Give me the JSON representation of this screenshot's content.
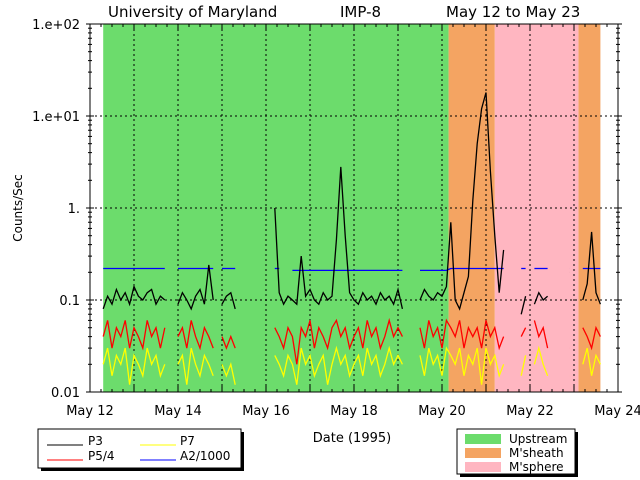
{
  "chart_data": {
    "type": "line",
    "title_parts": [
      "University of Maryland",
      "IMP-8",
      "May 12 to May 23"
    ],
    "xlabel": "Date (1995)",
    "ylabel": "Counts/Sec",
    "yscale": "log",
    "ylim": [
      0.01,
      100
    ],
    "xlim": [
      12,
      24
    ],
    "x_ticks": [
      12,
      14,
      16,
      18,
      20,
      22,
      24
    ],
    "x_tick_labels": [
      "May 12",
      "May 14",
      "May 16",
      "May 18",
      "May 20",
      "May 22",
      "May 24"
    ],
    "y_ticks": [
      100,
      10,
      1,
      0.1,
      0.01
    ],
    "y_tick_labels": [
      "1.e+02",
      "1.e+01",
      "1.",
      "0.1",
      "0.01"
    ],
    "grid": true,
    "x_start": 12.3,
    "x_step": 0.1,
    "series": [
      {
        "name": "P3",
        "color": "#000000",
        "values": [
          0.08,
          0.11,
          0.09,
          0.13,
          0.1,
          0.12,
          0.09,
          0.14,
          0.11,
          0.1,
          0.12,
          0.13,
          0.09,
          0.11,
          0.1,
          null,
          null,
          0.09,
          0.12,
          0.1,
          0.08,
          0.11,
          0.13,
          0.09,
          0.24,
          0.1,
          null,
          0.09,
          0.11,
          0.12,
          0.08,
          null,
          null,
          null,
          null,
          null,
          null,
          null,
          null,
          1.0,
          0.12,
          0.09,
          0.11,
          0.1,
          0.09,
          0.3,
          0.11,
          0.13,
          0.1,
          0.09,
          0.12,
          0.1,
          0.11,
          0.45,
          2.8,
          0.5,
          0.12,
          0.1,
          0.09,
          0.12,
          0.1,
          0.11,
          0.09,
          0.12,
          0.1,
          0.11,
          0.09,
          0.13,
          0.08,
          null,
          null,
          null,
          0.1,
          0.13,
          0.11,
          0.1,
          0.12,
          0.11,
          0.14,
          0.7,
          0.1,
          0.08,
          0.12,
          0.18,
          1.2,
          5.0,
          12,
          18,
          2.5,
          0.5,
          0.12,
          0.35,
          null,
          null,
          null,
          0.07,
          0.11,
          null,
          0.09,
          0.12,
          0.1,
          0.11,
          null,
          null,
          null,
          null,
          0.2,
          null,
          null,
          0.1,
          0.15,
          0.55,
          0.12,
          0.09,
          null
        ]
      },
      {
        "name": "P5/4",
        "color": "#ff0000",
        "values": [
          0.04,
          0.06,
          0.03,
          0.05,
          0.04,
          0.06,
          0.03,
          0.05,
          0.04,
          0.03,
          0.06,
          0.04,
          0.05,
          0.03,
          0.05,
          null,
          null,
          0.04,
          0.05,
          0.03,
          0.06,
          0.04,
          0.03,
          0.05,
          0.04,
          0.03,
          null,
          0.04,
          0.03,
          0.04,
          0.03,
          null,
          null,
          null,
          null,
          null,
          null,
          null,
          null,
          0.05,
          0.04,
          0.03,
          0.05,
          0.04,
          0.02,
          0.05,
          0.04,
          0.06,
          0.03,
          0.05,
          0.04,
          0.03,
          0.05,
          0.06,
          0.04,
          0.05,
          0.03,
          0.04,
          0.05,
          0.03,
          0.06,
          0.04,
          0.05,
          0.03,
          0.04,
          0.06,
          0.04,
          0.05,
          0.04,
          null,
          null,
          null,
          0.05,
          0.03,
          0.06,
          0.04,
          0.05,
          0.03,
          0.06,
          0.05,
          0.04,
          0.06,
          0.03,
          0.05,
          0.04,
          0.05,
          0.03,
          0.06,
          0.04,
          0.05,
          0.03,
          0.04,
          null,
          null,
          null,
          0.04,
          0.05,
          null,
          0.06,
          0.04,
          0.05,
          0.03,
          null,
          null,
          null,
          null,
          0.03,
          null,
          null,
          0.05,
          0.04,
          0.03,
          0.05,
          0.04,
          null
        ]
      },
      {
        "name": "P7",
        "color": "#ffff00",
        "values": [
          0.02,
          0.03,
          0.015,
          0.025,
          0.02,
          0.03,
          0.012,
          0.025,
          0.02,
          0.015,
          0.03,
          0.02,
          0.025,
          0.015,
          0.02,
          null,
          null,
          0.02,
          0.025,
          0.012,
          0.03,
          0.02,
          0.015,
          0.025,
          0.02,
          0.015,
          null,
          0.02,
          0.015,
          0.02,
          0.012,
          null,
          null,
          null,
          null,
          null,
          null,
          null,
          null,
          0.025,
          0.02,
          0.015,
          0.025,
          0.02,
          0.012,
          0.03,
          0.02,
          0.025,
          0.015,
          0.02,
          0.025,
          0.012,
          0.02,
          0.03,
          0.02,
          0.025,
          0.015,
          0.02,
          0.025,
          0.015,
          0.03,
          0.02,
          0.025,
          0.015,
          0.02,
          0.03,
          0.02,
          0.025,
          0.02,
          null,
          null,
          null,
          0.025,
          0.015,
          0.03,
          0.02,
          0.025,
          0.015,
          0.03,
          0.025,
          0.02,
          0.03,
          0.015,
          0.025,
          0.02,
          0.03,
          0.012,
          0.03,
          0.02,
          0.025,
          0.015,
          0.02,
          null,
          null,
          null,
          0.015,
          0.025,
          null,
          0.02,
          0.03,
          0.02,
          0.015,
          null,
          null,
          null,
          null,
          0.015,
          null,
          null,
          0.02,
          0.03,
          0.015,
          0.025,
          0.02,
          null
        ]
      },
      {
        "name": "A2/1000",
        "color": "#0000ff",
        "values": [
          0.22,
          0.22,
          0.22,
          0.22,
          0.22,
          0.22,
          0.22,
          0.22,
          0.22,
          0.22,
          0.22,
          0.22,
          0.22,
          0.22,
          0.22,
          null,
          null,
          0.22,
          0.22,
          0.22,
          0.22,
          0.22,
          0.22,
          0.22,
          0.22,
          0.22,
          null,
          0.22,
          0.22,
          0.22,
          0.22,
          null,
          null,
          null,
          null,
          null,
          null,
          null,
          null,
          0.22,
          0.22,
          null,
          null,
          0.21,
          0.21,
          0.21,
          0.21,
          0.21,
          0.21,
          0.21,
          0.21,
          0.21,
          0.21,
          0.21,
          0.21,
          0.21,
          0.21,
          0.21,
          0.21,
          0.21,
          0.21,
          0.21,
          0.21,
          0.21,
          0.21,
          0.21,
          0.21,
          0.21,
          0.21,
          null,
          null,
          null,
          0.21,
          0.21,
          0.21,
          0.21,
          0.21,
          0.21,
          0.21,
          0.22,
          0.22,
          0.22,
          0.22,
          0.22,
          0.22,
          0.22,
          0.22,
          0.22,
          0.22,
          0.22,
          0.22,
          0.22,
          null,
          null,
          null,
          0.22,
          0.22,
          null,
          0.22,
          0.22,
          0.22,
          0.22,
          null,
          null,
          null,
          null,
          0.22,
          null,
          null,
          0.22,
          0.22,
          0.22,
          0.22,
          0.22,
          null
        ]
      }
    ],
    "regions": [
      {
        "name": "Upstream",
        "color": "#6cdc6c",
        "spans": [
          [
            12.3,
            20.15
          ]
        ]
      },
      {
        "name": "M'sheath",
        "color": "#f4a462",
        "spans": [
          [
            20.15,
            21.2
          ],
          [
            23.1,
            23.6
          ]
        ]
      },
      {
        "name": "M'sphere",
        "color": "#ffb6c1",
        "spans": [
          [
            21.2,
            23.1
          ]
        ]
      }
    ],
    "legend_series_placement": "bottom-left",
    "legend_regions_placement": "bottom-right"
  }
}
